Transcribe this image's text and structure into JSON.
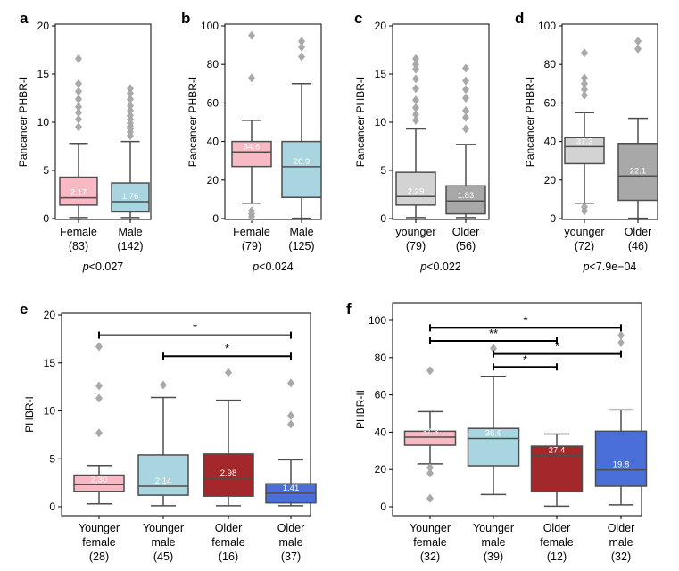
{
  "colors": {
    "female": "#f7b9c3",
    "male": "#a9d5e0",
    "younger": "#d3d3d3",
    "older": "#a8a8a8",
    "younger_female": "#f7b9c3",
    "younger_male": "#a9d5e0",
    "older_female": "#a4272b",
    "older_male": "#4a6fd8",
    "line": "#4d4d4d",
    "outlier": "#a9a9a9"
  },
  "chart_data": [
    {
      "panel": "a",
      "type": "box",
      "ylabel": "Pancancer PHBR-I",
      "ylim": [
        0,
        20
      ],
      "yticks": [
        0,
        5,
        10,
        15,
        20
      ],
      "p_prefix": "p",
      "p_rest": "<0.027",
      "groups": [
        {
          "name": "Female",
          "n": "(83)",
          "color": "female",
          "median_label": "2.17",
          "median": 2.17,
          "q1": 1.4,
          "q3": 4.3,
          "whisker_low": 0.1,
          "whisker_high": 7.8,
          "outliers": [
            9.5,
            10.3,
            11.0,
            11.6,
            12.4,
            13.2,
            14.0,
            16.6
          ]
        },
        {
          "name": "Male",
          "n": "(142)",
          "color": "male",
          "median_label": "1.76",
          "median": 1.76,
          "q1": 0.7,
          "q3": 3.7,
          "whisker_low": 0.1,
          "whisker_high": 8.0,
          "outliers": [
            8.6,
            9.0,
            9.3,
            9.6,
            9.9,
            10.3,
            10.7,
            11.2,
            11.7,
            12.4,
            13.0,
            13.5
          ]
        }
      ]
    },
    {
      "panel": "b",
      "type": "box",
      "ylabel": "Pancancer PHBR-I",
      "ylim": [
        0,
        100
      ],
      "yticks": [
        0,
        20,
        40,
        60,
        80,
        100
      ],
      "p_prefix": "p",
      "p_rest": "<0.024",
      "groups": [
        {
          "name": "Female",
          "n": "(79)",
          "color": "female",
          "median_label": "34.6",
          "median": 34.6,
          "q1": 27.0,
          "q3": 40.0,
          "whisker_low": 8.0,
          "whisker_high": 51.0,
          "outliers": [
            1.0,
            2.5,
            4.0,
            73.0,
            95.0
          ]
        },
        {
          "name": "Male",
          "n": "(125)",
          "color": "male",
          "median_label": "26.9",
          "median": 26.9,
          "q1": 11.0,
          "q3": 40.0,
          "whisker_low": 0.2,
          "whisker_high": 70.0,
          "outliers": [
            84.0,
            89.0,
            92.0
          ]
        }
      ]
    },
    {
      "panel": "c",
      "type": "box",
      "ylabel": "Pancancer PHBR-I",
      "ylim": [
        0,
        20
      ],
      "yticks": [
        0,
        5,
        10,
        15,
        20
      ],
      "p_prefix": "p",
      "p_rest": "<0.022",
      "groups": [
        {
          "name": "younger",
          "n": "(79)",
          "color": "younger",
          "median_label": "2.29",
          "median": 2.29,
          "q1": 1.4,
          "q3": 4.8,
          "whisker_low": 0.1,
          "whisker_high": 9.3,
          "outliers": [
            10.2,
            10.8,
            11.5,
            12.3,
            13.5,
            14.5,
            15.5,
            16.0,
            16.6
          ]
        },
        {
          "name": "Older",
          "n": "(56)",
          "color": "older",
          "median_label": "1.83",
          "median": 1.83,
          "q1": 0.5,
          "q3": 3.4,
          "whisker_low": 0.1,
          "whisker_high": 7.7,
          "outliers": [
            9.3,
            10.5,
            11.2,
            12.5,
            13.4,
            14.3,
            15.6
          ]
        }
      ]
    },
    {
      "panel": "d",
      "type": "box",
      "ylabel": "Pancancer PHBR-I",
      "ylim": [
        0,
        100
      ],
      "yticks": [
        0,
        20,
        40,
        60,
        80,
        100
      ],
      "p_prefix": "p",
      "p_rest": "<7.9e−04",
      "groups": [
        {
          "name": "younger",
          "n": "(72)",
          "color": "younger",
          "median_label": "37.3",
          "median": 37.3,
          "q1": 28.5,
          "q3": 42.0,
          "whisker_low": 8.0,
          "whisker_high": 55.0,
          "outliers": [
            4.0,
            6.0,
            64.0,
            67.0,
            70.0,
            73.0,
            86.0
          ]
        },
        {
          "name": "Older",
          "n": "(46)",
          "color": "older",
          "median_label": "22.1",
          "median": 22.1,
          "q1": 9.5,
          "q3": 39.0,
          "whisker_low": 0.2,
          "whisker_high": 52.0,
          "outliers": [
            88.0,
            92.0
          ]
        }
      ]
    },
    {
      "panel": "e",
      "type": "box",
      "ylabel": "PHBR-I",
      "ylim": [
        0,
        20
      ],
      "yticks": [
        0,
        5,
        10,
        15,
        20
      ],
      "groups": [
        {
          "name": "Younger",
          "name2": "female",
          "n": "(28)",
          "color": "younger_female",
          "median_label": "2.30",
          "median": 2.3,
          "q1": 1.6,
          "q3": 3.3,
          "whisker_low": 0.3,
          "whisker_high": 4.3,
          "outliers": [
            7.7,
            11.3,
            12.6,
            16.7
          ]
        },
        {
          "name": "Younger",
          "name2": "male",
          "n": "(45)",
          "color": "younger_male",
          "median_label": "2.14",
          "median": 2.14,
          "q1": 1.2,
          "q3": 5.4,
          "whisker_low": 0.1,
          "whisker_high": 11.4,
          "outliers": [
            12.7
          ]
        },
        {
          "name": "Older",
          "name2": "female",
          "n": "(16)",
          "color": "older_female",
          "median_label": "2.98",
          "median": 2.98,
          "q1": 1.1,
          "q3": 5.5,
          "whisker_low": 0.1,
          "whisker_high": 11.1,
          "outliers": [
            14.0
          ]
        },
        {
          "name": "Older",
          "name2": "male",
          "n": "(37)",
          "color": "older_male",
          "median_label": "1.41",
          "median": 1.41,
          "q1": 0.4,
          "q3": 2.4,
          "whisker_low": 0.1,
          "whisker_high": 4.9,
          "outliers": [
            8.6,
            9.5,
            12.9
          ]
        }
      ],
      "brackets": [
        {
          "from": 0,
          "to": 3,
          "y": 17.9,
          "label": "*"
        },
        {
          "from": 1,
          "to": 3,
          "y": 15.7,
          "label": "*"
        }
      ]
    },
    {
      "panel": "f",
      "type": "box",
      "ylabel": "PHBR-II",
      "ylim": [
        0,
        100
      ],
      "yticks": [
        0,
        20,
        40,
        60,
        80,
        100
      ],
      "groups": [
        {
          "name": "Younger",
          "name2": "female",
          "n": "(32)",
          "color": "younger_female",
          "median_label": "37.3",
          "median": 37.3,
          "q1": 33.0,
          "q3": 40.5,
          "whisker_low": 23.0,
          "whisker_high": 51.0,
          "outliers": [
            4.5,
            18.0,
            21.0,
            73.0
          ]
        },
        {
          "name": "Younger",
          "name2": "male",
          "n": "(39)",
          "color": "younger_male",
          "median_label": "36.6",
          "median": 36.6,
          "q1": 22.0,
          "q3": 42.0,
          "whisker_low": 6.5,
          "whisker_high": 70.0,
          "outliers": [
            85.0
          ]
        },
        {
          "name": "Older",
          "name2": "female",
          "n": "(12)",
          "color": "older_female",
          "median_label": "27.4",
          "median": 27.4,
          "q1": 8.0,
          "q3": 32.5,
          "whisker_low": 0.3,
          "whisker_high": 39.0,
          "outliers": []
        },
        {
          "name": "Older",
          "name2": "male",
          "n": "(32)",
          "color": "older_male",
          "median_label": "19.8",
          "median": 19.8,
          "q1": 11.0,
          "q3": 40.5,
          "whisker_low": 1.0,
          "whisker_high": 52.0,
          "outliers": [
            88.0,
            92.0
          ]
        }
      ],
      "brackets": [
        {
          "from": 0,
          "to": 3,
          "y": 96.0,
          "label": "*"
        },
        {
          "from": 0,
          "to": 2,
          "y": 89.0,
          "label": "**"
        },
        {
          "from": 1,
          "to": 3,
          "y": 82.0,
          "label": "*"
        },
        {
          "from": 1,
          "to": 2,
          "y": 75.0,
          "label": "*"
        }
      ]
    }
  ]
}
